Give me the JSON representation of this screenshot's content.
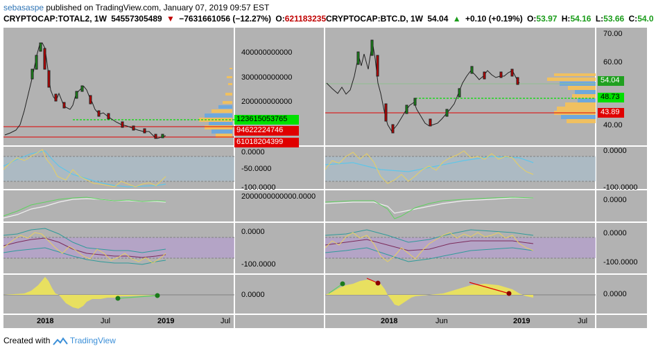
{
  "header": {
    "author": "sebasaspe",
    "published": "published on TradingView.com, January 07, 2019 09:57 EST"
  },
  "left": {
    "symbol": "CRYPTOCAP:TOTAL2, 1W",
    "price": "54557305489",
    "change": "−7631661056 (−12.27%)",
    "open_label": "O:",
    "open_value": "621183235",
    "y_ticks": [
      "400000000000",
      "300000000000",
      "200000000000"
    ],
    "price_tags": [
      {
        "value": "123615053765",
        "color": "#00e000"
      },
      {
        "value": "94622224746",
        "color": "#e00000"
      },
      {
        "value": "61018204399",
        "color": "#e00000"
      }
    ],
    "sub1_ticks": [
      "0.0000",
      "-50.0000",
      "-100.0000"
    ],
    "sub2_ticks": [
      "2000000000000.0000"
    ],
    "sub3_ticks": [
      "0.0000",
      "-100.0000"
    ],
    "sub4_ticks": [
      "0.0000"
    ],
    "x_ticks": [
      "2018",
      "Jul",
      "2019",
      "Jul"
    ]
  },
  "right": {
    "symbol": "CRYPTOCAP:BTC.D, 1W",
    "price": "54.04",
    "change": "+0.10 (+0.19%)",
    "ohlc": [
      {
        "label": "O:",
        "value": "53.97"
      },
      {
        "label": "H:",
        "value": "54.16"
      },
      {
        "label": "L:",
        "value": "53.66"
      },
      {
        "label": "C:",
        "value": "54.0"
      }
    ],
    "y_ticks": [
      "70.00",
      "60.00",
      "40.00"
    ],
    "price_tags": [
      {
        "value": "54.04",
        "color": "#20a020"
      },
      {
        "value": "48.73",
        "color": "#00e000"
      },
      {
        "value": "43.89",
        "color": "#e00000"
      }
    ],
    "sub1_ticks": [
      "0.0000",
      "-100.0000"
    ],
    "sub2_ticks": [
      "0.0000"
    ],
    "sub3_ticks": [
      "0.0000",
      "-100.0000"
    ],
    "sub4_ticks": [
      "0.0000"
    ],
    "x_ticks": [
      "2018",
      "Jun",
      "2019",
      "Jul"
    ]
  },
  "footer": {
    "created_with": "Created with",
    "brand": "TradingView"
  }
}
